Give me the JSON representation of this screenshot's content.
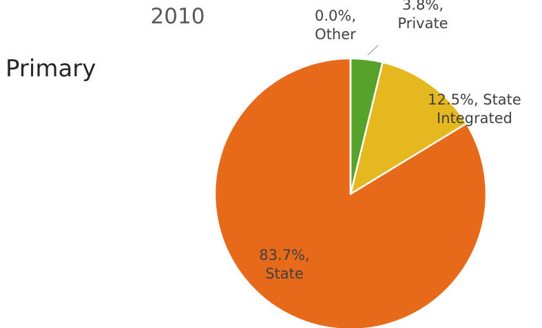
{
  "chart_data": {
    "type": "pie",
    "title": "2010",
    "subtitle": "Primary",
    "values": [
      0.0,
      3.8,
      12.5,
      83.7
    ],
    "value_labels": [
      "0.0%, Other",
      "3.8%, Private",
      "12.5%, State Integrated",
      "83.7%, State"
    ],
    "colors": [
      "#7f7f7f",
      "#56a22b",
      "#e6b820",
      "#e66a19"
    ]
  }
}
